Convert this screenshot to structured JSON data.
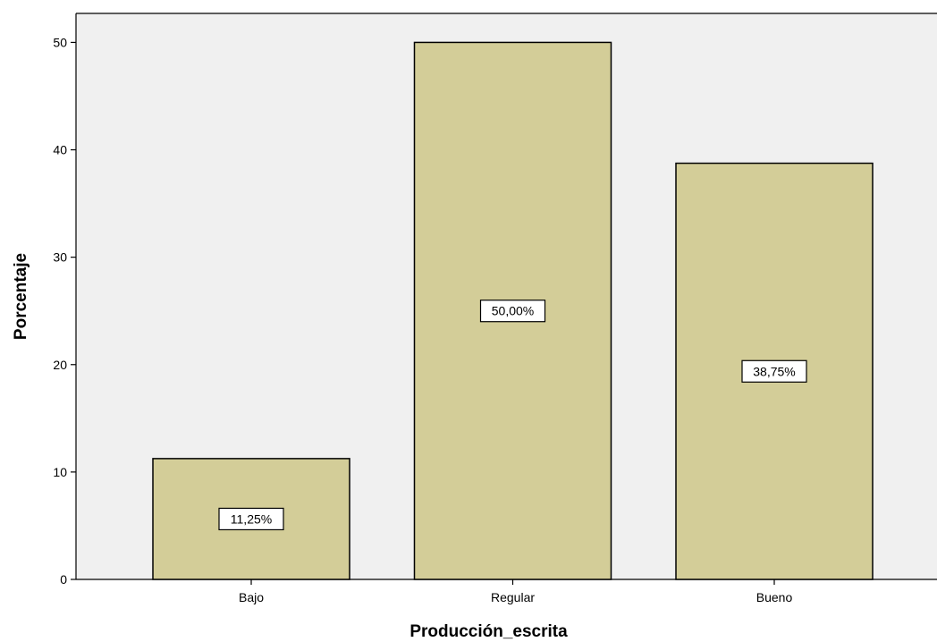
{
  "chart_data": {
    "type": "bar",
    "categories": [
      "Bajo",
      "Regular",
      "Bueno"
    ],
    "values": [
      11.25,
      50.0,
      38.75
    ],
    "data_labels": [
      "11,25%",
      "50,00%",
      "38,75%"
    ],
    "xlabel": "Producción_escrita",
    "ylabel": "Porcentaje",
    "ylim": [
      0,
      52.7
    ],
    "yticks": [
      0,
      10,
      20,
      30,
      40,
      50
    ],
    "ytick_labels": [
      "0",
      "10",
      "20",
      "30",
      "40",
      "50"
    ],
    "grid": false,
    "bar_color": "#d3cd98",
    "plot_background": "#f0f0f0"
  }
}
